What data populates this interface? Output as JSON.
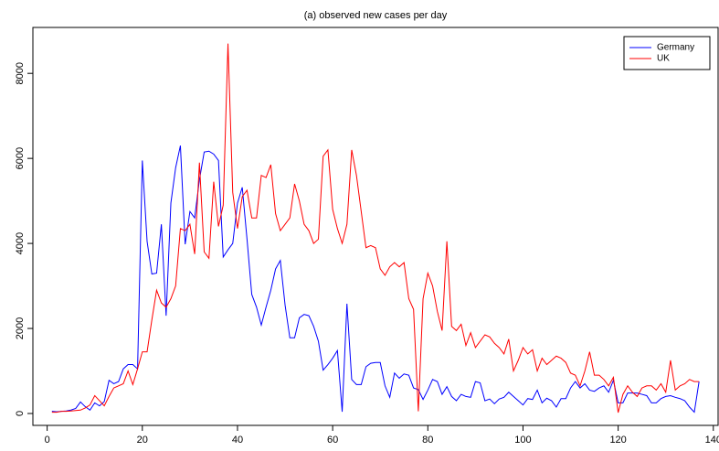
{
  "chart_data": {
    "type": "line",
    "title": "(a) observed new cases per day",
    "x": [
      1,
      2,
      3,
      4,
      5,
      6,
      7,
      8,
      9,
      10,
      11,
      12,
      13,
      14,
      15,
      16,
      17,
      18,
      19,
      20,
      21,
      22,
      23,
      24,
      25,
      26,
      27,
      28,
      29,
      30,
      31,
      32,
      33,
      34,
      35,
      36,
      37,
      38,
      39,
      40,
      41,
      42,
      43,
      44,
      45,
      46,
      47,
      48,
      49,
      50,
      51,
      52,
      53,
      54,
      55,
      56,
      57,
      58,
      59,
      60,
      61,
      62,
      63,
      64,
      65,
      66,
      67,
      68,
      69,
      70,
      71,
      72,
      73,
      74,
      75,
      76,
      77,
      78,
      79,
      80,
      81,
      82,
      83,
      84,
      85,
      86,
      87,
      88,
      89,
      90,
      91,
      92,
      93,
      94,
      95,
      96,
      97,
      98,
      99,
      100,
      101,
      102,
      103,
      104,
      105,
      106,
      107,
      108,
      109,
      110,
      111,
      112,
      113,
      114,
      115,
      116,
      117,
      118,
      119,
      120,
      121,
      122,
      123,
      124,
      125,
      126,
      127,
      128,
      129,
      130,
      131,
      132,
      133,
      134,
      135,
      136,
      137
    ],
    "series": [
      {
        "name": "Germany",
        "color": "#0000ff",
        "values": [
          50,
          40,
          50,
          60,
          80,
          120,
          270,
          160,
          80,
          250,
          180,
          280,
          780,
          700,
          750,
          1050,
          1150,
          1150,
          1050,
          5950,
          4050,
          3280,
          3300,
          4450,
          2300,
          4950,
          5780,
          6300,
          3980,
          4750,
          4600,
          5500,
          6150,
          6170,
          6100,
          5950,
          3680,
          3850,
          4000,
          4950,
          5320,
          4100,
          2800,
          2500,
          2080,
          2500,
          2900,
          3400,
          3600,
          2550,
          1780,
          1780,
          2250,
          2330,
          2300,
          2050,
          1700,
          1020,
          1150,
          1300,
          1480,
          40,
          2580,
          800,
          680,
          680,
          1100,
          1180,
          1200,
          1200,
          650,
          380,
          950,
          830,
          930,
          900,
          600,
          560,
          330,
          550,
          800,
          750,
          450,
          630,
          400,
          300,
          450,
          400,
          380,
          750,
          720,
          300,
          340,
          230,
          340,
          380,
          500,
          400,
          300,
          200,
          350,
          330,
          550,
          250,
          360,
          300,
          150,
          350,
          350,
          600,
          750,
          600,
          700,
          550,
          520,
          600,
          650,
          500,
          780,
          250,
          250,
          480,
          480,
          480,
          450,
          420,
          250,
          250,
          350,
          400,
          420,
          380,
          350,
          300,
          150,
          30,
          750
        ]
      },
      {
        "name": "UK",
        "color": "#ff0000",
        "values": [
          30,
          30,
          50,
          50,
          60,
          70,
          80,
          130,
          200,
          420,
          300,
          180,
          400,
          600,
          650,
          700,
          1000,
          680,
          1050,
          1450,
          1450,
          2200,
          2900,
          2600,
          2500,
          2700,
          3000,
          4350,
          4300,
          4450,
          3750,
          5900,
          3800,
          3650,
          5450,
          4400,
          4900,
          8700,
          5200,
          4350,
          5100,
          5250,
          4600,
          4600,
          5600,
          5550,
          5850,
          4700,
          4300,
          4450,
          4600,
          5400,
          5000,
          4450,
          4300,
          4000,
          4100,
          6050,
          6200,
          4800,
          4350,
          4000,
          4450,
          6200,
          5600,
          4750,
          3900,
          3950,
          3900,
          3400,
          3250,
          3450,
          3550,
          3450,
          3550,
          2700,
          2450,
          50,
          2700,
          3300,
          3000,
          2400,
          1950,
          4050,
          2050,
          1950,
          2100,
          1600,
          1900,
          1550,
          1700,
          1850,
          1800,
          1650,
          1550,
          1400,
          1750,
          1000,
          1250,
          1550,
          1400,
          1500,
          1000,
          1300,
          1150,
          1250,
          1350,
          1300,
          1200,
          950,
          900,
          650,
          1000,
          1450,
          900,
          900,
          800,
          650,
          850,
          20,
          450,
          650,
          500,
          400,
          600,
          650,
          650,
          550,
          700,
          500,
          1250,
          550,
          650,
          700,
          800,
          750,
          750
        ]
      }
    ],
    "xlim": [
      -3,
      141
    ],
    "ylim": [
      -280,
      9080
    ],
    "xticks": [
      0,
      20,
      40,
      60,
      80,
      100,
      120,
      140
    ],
    "yticks": [
      0,
      2000,
      4000,
      6000,
      8000
    ],
    "legend": "top-right"
  }
}
